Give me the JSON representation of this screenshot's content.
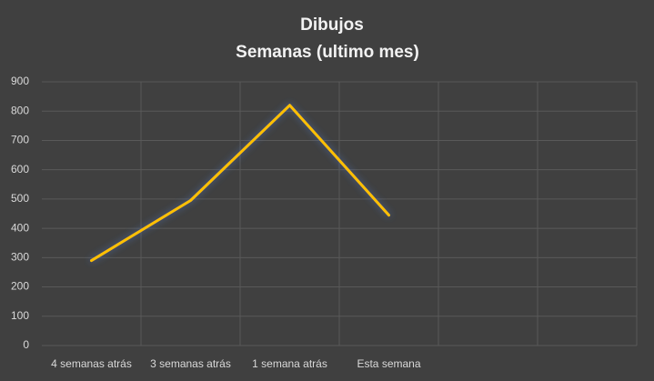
{
  "chart_data": {
    "type": "line",
    "title": "Dibujos",
    "subtitle": "Semanas (ultimo mes)",
    "categories": [
      "4 semanas atrás",
      "3 semanas atrás",
      "1 semana atrás",
      "Esta semana",
      null,
      null
    ],
    "series": [
      {
        "name": "Dibujos",
        "color": "#ffc000",
        "values": [
          290,
          495,
          820,
          445,
          null,
          null
        ]
      }
    ],
    "ylim": [
      0,
      900
    ],
    "yticks": [
      0,
      100,
      200,
      300,
      400,
      500,
      600,
      700,
      800,
      900
    ],
    "grid": true,
    "legend": false
  }
}
